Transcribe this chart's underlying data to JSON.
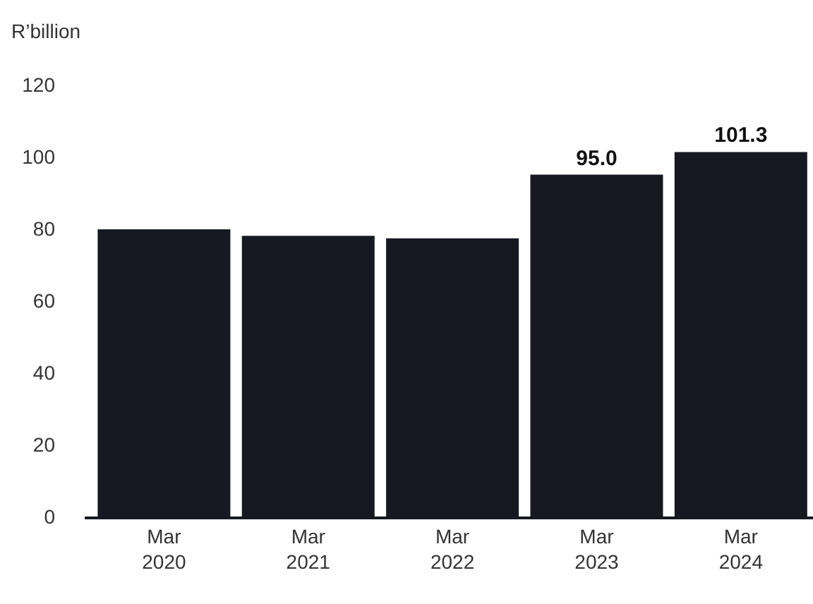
{
  "chart_data": {
    "type": "bar",
    "ylabel": "R’billion",
    "categories": [
      "Mar\n2020",
      "Mar\n2021",
      "Mar\n2022",
      "Mar\n2023",
      "Mar\n2024"
    ],
    "values": [
      79.8,
      78.0,
      77.3,
      95.0,
      101.3
    ],
    "value_labels": [
      null,
      null,
      null,
      "95.0",
      "101.3"
    ],
    "color": "#161922",
    "ylim": [
      0,
      120
    ],
    "yticks": [
      0,
      20,
      40,
      60,
      80,
      100,
      120
    ],
    "legend": false
  }
}
